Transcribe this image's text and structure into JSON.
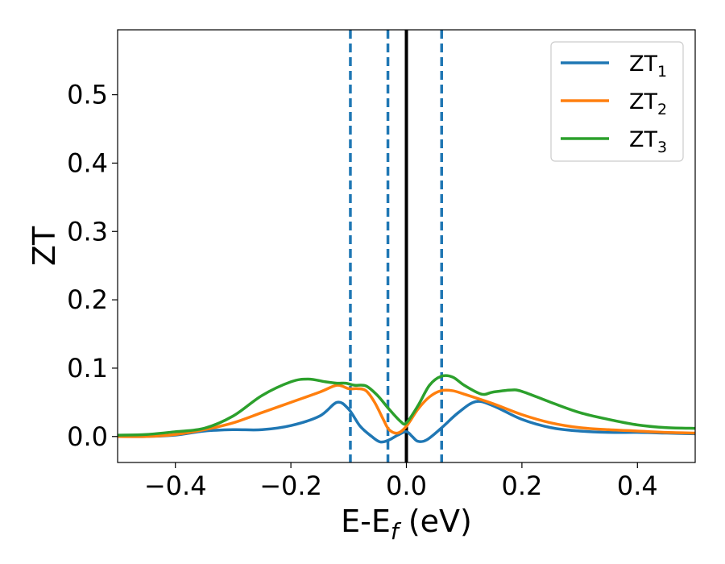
{
  "chart_data": {
    "type": "line",
    "xlabel": "E-E",
    "xlabel_sub": "f",
    "xlabel_unit": " (eV)",
    "ylabel": "ZT",
    "xlim": [
      -0.5,
      0.5
    ],
    "ylim": [
      -0.038,
      0.595
    ],
    "x_ticks": [
      -0.4,
      -0.2,
      0.0,
      0.2,
      0.4
    ],
    "x_tick_labels": [
      "−0.4",
      "−0.2",
      "0.0",
      "0.2",
      "0.4"
    ],
    "y_ticks": [
      0.0,
      0.1,
      0.2,
      0.3,
      0.4,
      0.5
    ],
    "y_tick_labels": [
      "0.0",
      "0.1",
      "0.2",
      "0.3",
      "0.4",
      "0.5"
    ],
    "grid": false,
    "legend_position": "top-right",
    "vertical_lines": [
      {
        "x": -0.097,
        "style": "dashed",
        "color": "#1f77b4"
      },
      {
        "x": -0.032,
        "style": "dashed",
        "color": "#1f77b4"
      },
      {
        "x": 0.0,
        "style": "solid",
        "color": "#000000"
      },
      {
        "x": 0.061,
        "style": "dashed",
        "color": "#1f77b4"
      }
    ],
    "series": [
      {
        "name": "ZT",
        "sub": "1",
        "color": "#1f77b4",
        "points": [
          [
            -0.5,
            0.0
          ],
          [
            -0.45,
            0.0
          ],
          [
            -0.4,
            0.002
          ],
          [
            -0.35,
            0.008
          ],
          [
            -0.3,
            0.01
          ],
          [
            -0.25,
            0.01
          ],
          [
            -0.2,
            0.016
          ],
          [
            -0.15,
            0.03
          ],
          [
            -0.12,
            0.05
          ],
          [
            -0.1,
            0.04
          ],
          [
            -0.08,
            0.015
          ],
          [
            -0.06,
            0.0
          ],
          [
            -0.045,
            -0.008
          ],
          [
            -0.03,
            -0.005
          ],
          [
            -0.015,
            0.002
          ],
          [
            0.0,
            0.007
          ],
          [
            0.01,
            0.0
          ],
          [
            0.02,
            -0.007
          ],
          [
            0.035,
            -0.005
          ],
          [
            0.06,
            0.012
          ],
          [
            0.09,
            0.035
          ],
          [
            0.12,
            0.051
          ],
          [
            0.15,
            0.045
          ],
          [
            0.2,
            0.025
          ],
          [
            0.25,
            0.013
          ],
          [
            0.3,
            0.008
          ],
          [
            0.35,
            0.006
          ],
          [
            0.4,
            0.006
          ],
          [
            0.45,
            0.005
          ],
          [
            0.5,
            0.004
          ]
        ]
      },
      {
        "name": "ZT",
        "sub": "2",
        "color": "#ff7f0e",
        "points": [
          [
            -0.5,
            0.0
          ],
          [
            -0.45,
            0.0
          ],
          [
            -0.4,
            0.003
          ],
          [
            -0.35,
            0.01
          ],
          [
            -0.3,
            0.02
          ],
          [
            -0.25,
            0.035
          ],
          [
            -0.2,
            0.05
          ],
          [
            -0.15,
            0.065
          ],
          [
            -0.12,
            0.075
          ],
          [
            -0.1,
            0.07
          ],
          [
            -0.085,
            0.07
          ],
          [
            -0.07,
            0.067
          ],
          [
            -0.055,
            0.05
          ],
          [
            -0.04,
            0.025
          ],
          [
            -0.03,
            0.01
          ],
          [
            -0.015,
            0.005
          ],
          [
            0.0,
            0.015
          ],
          [
            0.02,
            0.04
          ],
          [
            0.04,
            0.058
          ],
          [
            0.06,
            0.067
          ],
          [
            0.08,
            0.067
          ],
          [
            0.1,
            0.062
          ],
          [
            0.15,
            0.048
          ],
          [
            0.2,
            0.032
          ],
          [
            0.25,
            0.02
          ],
          [
            0.3,
            0.013
          ],
          [
            0.35,
            0.01
          ],
          [
            0.4,
            0.008
          ],
          [
            0.45,
            0.006
          ],
          [
            0.5,
            0.005
          ]
        ]
      },
      {
        "name": "ZT",
        "sub": "3",
        "color": "#2ca02c",
        "points": [
          [
            -0.5,
            0.002
          ],
          [
            -0.45,
            0.003
          ],
          [
            -0.4,
            0.007
          ],
          [
            -0.35,
            0.012
          ],
          [
            -0.3,
            0.03
          ],
          [
            -0.25,
            0.06
          ],
          [
            -0.2,
            0.08
          ],
          [
            -0.17,
            0.084
          ],
          [
            -0.14,
            0.08
          ],
          [
            -0.12,
            0.078
          ],
          [
            -0.105,
            0.078
          ],
          [
            -0.09,
            0.075
          ],
          [
            -0.07,
            0.074
          ],
          [
            -0.05,
            0.06
          ],
          [
            -0.03,
            0.04
          ],
          [
            -0.01,
            0.022
          ],
          [
            0.0,
            0.02
          ],
          [
            0.02,
            0.045
          ],
          [
            0.04,
            0.075
          ],
          [
            0.06,
            0.088
          ],
          [
            0.08,
            0.087
          ],
          [
            0.1,
            0.075
          ],
          [
            0.13,
            0.062
          ],
          [
            0.15,
            0.065
          ],
          [
            0.18,
            0.068
          ],
          [
            0.2,
            0.066
          ],
          [
            0.25,
            0.05
          ],
          [
            0.3,
            0.035
          ],
          [
            0.35,
            0.025
          ],
          [
            0.4,
            0.017
          ],
          [
            0.45,
            0.013
          ],
          [
            0.5,
            0.012
          ]
        ]
      }
    ]
  }
}
